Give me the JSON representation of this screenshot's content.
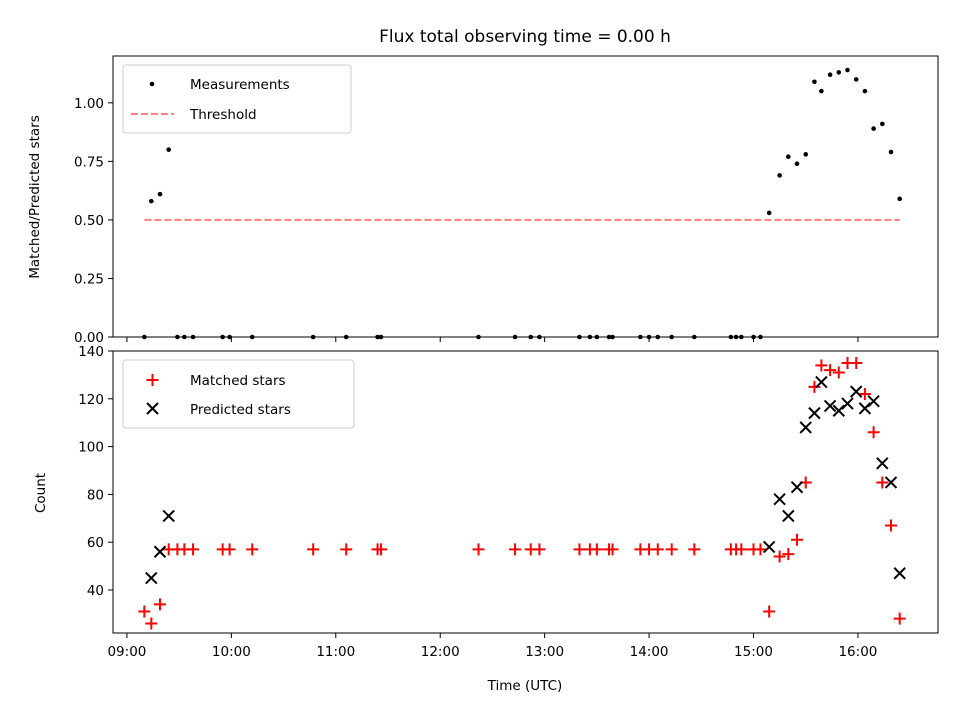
{
  "chart_data": [
    {
      "type": "scatter",
      "title": "Flux total observing time = 0.00 h",
      "xlabel": "",
      "ylabel": "Matched/Predicted stars",
      "x_unit": "UTC time",
      "xlim": [
        "08:52",
        "16:46"
      ],
      "ylim": [
        0,
        1.2
      ],
      "yticks": [
        "0.00",
        "0.25",
        "0.50",
        "0.75",
        "1.00"
      ],
      "grid": false,
      "legend_position": "top-left",
      "series": [
        {
          "name": "Measurements",
          "marker": "dot",
          "color": "#000000",
          "points": [
            {
              "x": "09:10",
              "y": 0.0
            },
            {
              "x": "09:14",
              "y": 0.58
            },
            {
              "x": "09:19",
              "y": 0.61
            },
            {
              "x": "09:24",
              "y": 0.8
            },
            {
              "x": "09:29",
              "y": 0.0
            },
            {
              "x": "09:33",
              "y": 0.0
            },
            {
              "x": "09:38",
              "y": 0.0
            },
            {
              "x": "09:55",
              "y": 0.0
            },
            {
              "x": "09:59",
              "y": 0.0
            },
            {
              "x": "10:12",
              "y": 0.0
            },
            {
              "x": "10:47",
              "y": 0.0
            },
            {
              "x": "11:06",
              "y": 0.0
            },
            {
              "x": "11:24",
              "y": 0.0
            },
            {
              "x": "11:26",
              "y": 0.0
            },
            {
              "x": "12:22",
              "y": 0.0
            },
            {
              "x": "12:43",
              "y": 0.0
            },
            {
              "x": "12:52",
              "y": 0.0
            },
            {
              "x": "12:57",
              "y": 0.0
            },
            {
              "x": "13:20",
              "y": 0.0
            },
            {
              "x": "13:26",
              "y": 0.0
            },
            {
              "x": "13:30",
              "y": 0.0
            },
            {
              "x": "13:37",
              "y": 0.0
            },
            {
              "x": "13:39",
              "y": 0.0
            },
            {
              "x": "13:55",
              "y": 0.0
            },
            {
              "x": "14:00",
              "y": 0.0
            },
            {
              "x": "14:05",
              "y": 0.0
            },
            {
              "x": "14:13",
              "y": 0.0
            },
            {
              "x": "14:26",
              "y": 0.0
            },
            {
              "x": "14:47",
              "y": 0.0
            },
            {
              "x": "14:50",
              "y": 0.0
            },
            {
              "x": "14:53",
              "y": 0.0
            },
            {
              "x": "15:00",
              "y": 0.0
            },
            {
              "x": "15:04",
              "y": 0.0
            },
            {
              "x": "15:09",
              "y": 0.53
            },
            {
              "x": "15:15",
              "y": 0.69
            },
            {
              "x": "15:20",
              "y": 0.77
            },
            {
              "x": "15:25",
              "y": 0.74
            },
            {
              "x": "15:30",
              "y": 0.78
            },
            {
              "x": "15:35",
              "y": 1.09
            },
            {
              "x": "15:39",
              "y": 1.05
            },
            {
              "x": "15:44",
              "y": 1.12
            },
            {
              "x": "15:49",
              "y": 1.13
            },
            {
              "x": "15:54",
              "y": 1.14
            },
            {
              "x": "15:59",
              "y": 1.1
            },
            {
              "x": "16:04",
              "y": 1.05
            },
            {
              "x": "16:09",
              "y": 0.89
            },
            {
              "x": "16:14",
              "y": 0.91
            },
            {
              "x": "16:19",
              "y": 0.79
            },
            {
              "x": "16:24",
              "y": 0.59
            }
          ]
        },
        {
          "name": "Threshold",
          "marker": "dashed-line",
          "color": "#ff7f7f",
          "points": [
            {
              "x": "09:10",
              "y": 0.5
            },
            {
              "x": "16:24",
              "y": 0.5
            }
          ]
        }
      ]
    },
    {
      "type": "scatter",
      "title": "",
      "xlabel": "Time (UTC)",
      "ylabel": "Count",
      "xlim": [
        "08:52",
        "16:46"
      ],
      "xticks": [
        "09:00",
        "10:00",
        "11:00",
        "12:00",
        "13:00",
        "14:00",
        "15:00",
        "16:00"
      ],
      "ylim": [
        22,
        140
      ],
      "yticks": [
        "40",
        "60",
        "80",
        "100",
        "120",
        "140"
      ],
      "grid": false,
      "legend_position": "top-left",
      "series": [
        {
          "name": "Matched stars",
          "marker": "plus",
          "color": "#ff0000",
          "points": [
            {
              "x": "09:10",
              "y": 31
            },
            {
              "x": "09:14",
              "y": 26
            },
            {
              "x": "09:19",
              "y": 34
            },
            {
              "x": "09:24",
              "y": 57
            },
            {
              "x": "09:29",
              "y": 57
            },
            {
              "x": "09:33",
              "y": 57
            },
            {
              "x": "09:38",
              "y": 57
            },
            {
              "x": "09:55",
              "y": 57
            },
            {
              "x": "09:59",
              "y": 57
            },
            {
              "x": "10:12",
              "y": 57
            },
            {
              "x": "10:47",
              "y": 57
            },
            {
              "x": "11:06",
              "y": 57
            },
            {
              "x": "11:24",
              "y": 57
            },
            {
              "x": "11:26",
              "y": 57
            },
            {
              "x": "12:22",
              "y": 57
            },
            {
              "x": "12:43",
              "y": 57
            },
            {
              "x": "12:52",
              "y": 57
            },
            {
              "x": "12:57",
              "y": 57
            },
            {
              "x": "13:20",
              "y": 57
            },
            {
              "x": "13:26",
              "y": 57
            },
            {
              "x": "13:30",
              "y": 57
            },
            {
              "x": "13:37",
              "y": 57
            },
            {
              "x": "13:39",
              "y": 57
            },
            {
              "x": "13:55",
              "y": 57
            },
            {
              "x": "14:00",
              "y": 57
            },
            {
              "x": "14:05",
              "y": 57
            },
            {
              "x": "14:13",
              "y": 57
            },
            {
              "x": "14:26",
              "y": 57
            },
            {
              "x": "14:47",
              "y": 57
            },
            {
              "x": "14:50",
              "y": 57
            },
            {
              "x": "14:53",
              "y": 57
            },
            {
              "x": "15:00",
              "y": 57
            },
            {
              "x": "15:04",
              "y": 57
            },
            {
              "x": "15:09",
              "y": 31
            },
            {
              "x": "15:15",
              "y": 54
            },
            {
              "x": "15:20",
              "y": 55
            },
            {
              "x": "15:25",
              "y": 61
            },
            {
              "x": "15:30",
              "y": 85
            },
            {
              "x": "15:35",
              "y": 125
            },
            {
              "x": "15:39",
              "y": 134
            },
            {
              "x": "15:44",
              "y": 132
            },
            {
              "x": "15:49",
              "y": 131
            },
            {
              "x": "15:54",
              "y": 135
            },
            {
              "x": "15:59",
              "y": 135
            },
            {
              "x": "16:04",
              "y": 122
            },
            {
              "x": "16:09",
              "y": 106
            },
            {
              "x": "16:14",
              "y": 85
            },
            {
              "x": "16:19",
              "y": 67
            },
            {
              "x": "16:24",
              "y": 28
            }
          ]
        },
        {
          "name": "Predicted stars",
          "marker": "x",
          "color": "#000000",
          "points": [
            {
              "x": "09:14",
              "y": 45
            },
            {
              "x": "09:19",
              "y": 56
            },
            {
              "x": "09:24",
              "y": 71
            },
            {
              "x": "15:09",
              "y": 58
            },
            {
              "x": "15:15",
              "y": 78
            },
            {
              "x": "15:20",
              "y": 71
            },
            {
              "x": "15:25",
              "y": 83
            },
            {
              "x": "15:30",
              "y": 108
            },
            {
              "x": "15:35",
              "y": 114
            },
            {
              "x": "15:39",
              "y": 127
            },
            {
              "x": "15:44",
              "y": 117
            },
            {
              "x": "15:49",
              "y": 115
            },
            {
              "x": "15:54",
              "y": 118
            },
            {
              "x": "15:59",
              "y": 123
            },
            {
              "x": "16:04",
              "y": 116
            },
            {
              "x": "16:09",
              "y": 119
            },
            {
              "x": "16:14",
              "y": 93
            },
            {
              "x": "16:19",
              "y": 85
            },
            {
              "x": "16:24",
              "y": 47
            }
          ]
        }
      ]
    }
  ]
}
